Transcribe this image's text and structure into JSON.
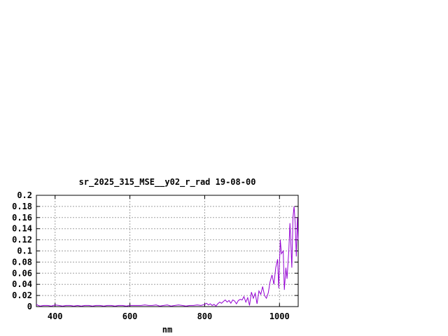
{
  "chart_data": {
    "type": "line",
    "title": "sr_2025_315_MSE__y02_r_rad 19-08-00",
    "xlabel": "nm",
    "ylabel": "",
    "xlim": [
      350,
      1050
    ],
    "ylim": [
      0,
      0.2
    ],
    "grid": true,
    "x_ticks": [
      400,
      600,
      800,
      1000
    ],
    "x_tick_labels": [
      "400",
      "600",
      "800",
      "1000"
    ],
    "y_ticks": [
      0,
      0.02,
      0.04,
      0.06,
      0.08,
      0.1,
      0.12,
      0.14,
      0.16,
      0.18,
      0.2
    ],
    "y_tick_labels": [
      "0",
      "0.02",
      "0.04",
      "0.06",
      "0.08",
      "0.1",
      "0.12",
      "0.14",
      "0.16",
      "0.18",
      "0.2"
    ],
    "series": [
      {
        "color": "#9400d3",
        "x": [
          350,
          355,
          360,
          370,
          380,
          390,
          400,
          410,
          420,
          430,
          440,
          450,
          460,
          470,
          480,
          490,
          500,
          510,
          520,
          530,
          540,
          550,
          560,
          570,
          580,
          590,
          600,
          610,
          620,
          630,
          640,
          650,
          660,
          670,
          680,
          690,
          700,
          710,
          720,
          730,
          740,
          750,
          760,
          770,
          780,
          790,
          800,
          805,
          810,
          815,
          820,
          825,
          830,
          835,
          840,
          845,
          850,
          855,
          860,
          865,
          870,
          875,
          880,
          885,
          890,
          895,
          900,
          905,
          910,
          915,
          920,
          925,
          930,
          935,
          940,
          945,
          950,
          955,
          960,
          965,
          970,
          975,
          980,
          985,
          990,
          995,
          998,
          1002,
          1005,
          1010,
          1013,
          1017,
          1020,
          1025,
          1028,
          1030,
          1033,
          1036,
          1039,
          1042,
          1045,
          1048,
          1050
        ],
        "y": [
          0.004,
          0.002,
          0.001,
          0.002,
          0.002,
          0.001,
          0.003,
          0.002,
          0.001,
          0.002,
          0.002,
          0.001,
          0.002,
          0.001,
          0.002,
          0.002,
          0.001,
          0.002,
          0.002,
          0.001,
          0.002,
          0.002,
          0.001,
          0.002,
          0.002,
          0.001,
          0.002,
          0.002,
          0.002,
          0.002,
          0.003,
          0.002,
          0.002,
          0.003,
          0.001,
          0.002,
          0.003,
          0.001,
          0.002,
          0.003,
          0.002,
          0.001,
          0.002,
          0.002,
          0.003,
          0.002,
          0.004,
          0.006,
          0.003,
          0.005,
          0.002,
          0.004,
          0.001,
          0.005,
          0.008,
          0.006,
          0.009,
          0.012,
          0.008,
          0.011,
          0.006,
          0.012,
          0.01,
          0.005,
          0.011,
          0.013,
          0.012,
          0.018,
          0.008,
          0.016,
          0.002,
          0.026,
          0.015,
          0.024,
          0.005,
          0.028,
          0.022,
          0.036,
          0.02,
          0.015,
          0.025,
          0.045,
          0.057,
          0.04,
          0.07,
          0.085,
          0.033,
          0.12,
          0.095,
          0.1,
          0.03,
          0.07,
          0.05,
          0.1,
          0.15,
          0.12,
          0.07,
          0.16,
          0.18,
          0.15,
          0.09,
          0.16,
          0.12
        ]
      }
    ]
  }
}
